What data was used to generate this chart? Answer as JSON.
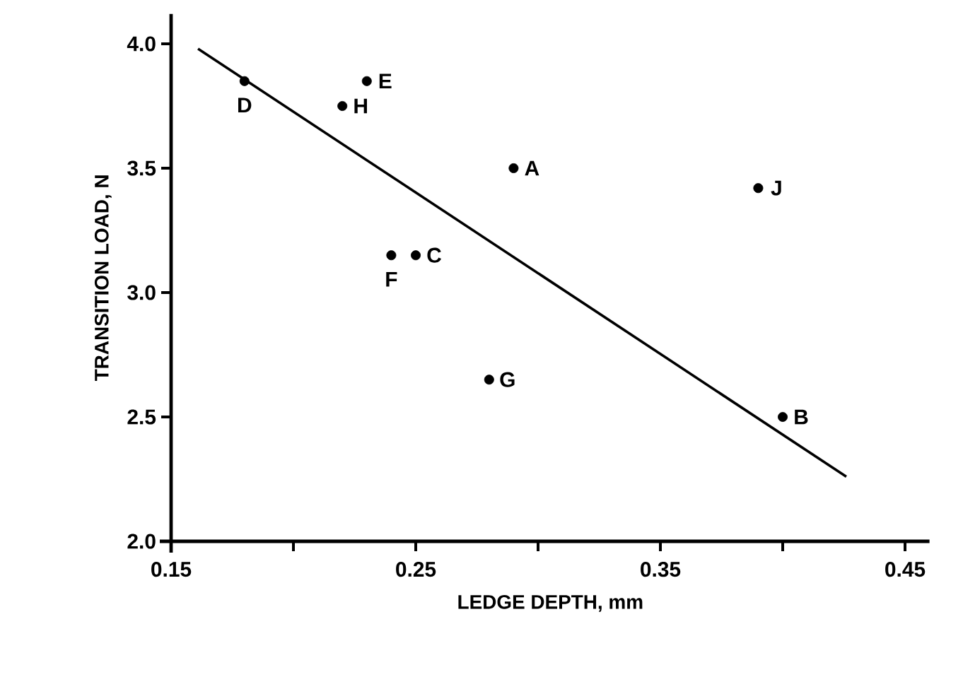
{
  "chart_data": {
    "type": "scatter",
    "xlabel": "LEDGE DEPTH, mm",
    "ylabel": "TRANSITION LOAD, N",
    "xlim": [
      0.15,
      0.46
    ],
    "ylim": [
      2.0,
      4.12
    ],
    "xticks": [
      0.15,
      {
        "value": 0.2,
        "label": null
      },
      0.25,
      {
        "value": 0.3,
        "label": null
      },
      0.35,
      {
        "value": 0.4,
        "label": null
      },
      0.45
    ],
    "yticks": [
      {
        "value": 2,
        "label": "2.0"
      },
      2.5,
      {
        "value": 3,
        "label": "3.0"
      },
      3.5,
      {
        "value": 4,
        "label": "4.0"
      }
    ],
    "grid": false,
    "series": [
      {
        "color": "#000000",
        "marker": "circle",
        "x": [
          0.29,
          0.4,
          0.25,
          0.18,
          0.23,
          0.24,
          0.28,
          0.22,
          0.39
        ],
        "values": [
          3.5,
          2.5,
          3.15,
          3.85,
          3.85,
          3.15,
          2.65,
          3.75,
          3.42
        ]
      },
      {
        "type": "line",
        "color": "#000000",
        "line_style": "solid",
        "x": [
          0.161,
          0.426
        ],
        "values": [
          3.98,
          2.26
        ]
      }
    ],
    "annotations": [
      {
        "text": "A",
        "x": 0.29,
        "y": 3.5
      },
      {
        "text": "B",
        "x": 0.4,
        "y": 2.5
      },
      {
        "text": "C",
        "x": 0.25,
        "y": 3.15
      },
      {
        "text": "D",
        "x": 0.18,
        "y": 3.85
      },
      {
        "text": "E",
        "x": 0.23,
        "y": 3.85
      },
      {
        "text": "F",
        "x": 0.24,
        "y": 3.15
      },
      {
        "text": "G",
        "x": 0.28,
        "y": 2.65
      },
      {
        "text": "H",
        "x": 0.22,
        "y": 3.75
      },
      {
        "text": "J",
        "x": 0.39,
        "y": 3.42
      }
    ]
  }
}
